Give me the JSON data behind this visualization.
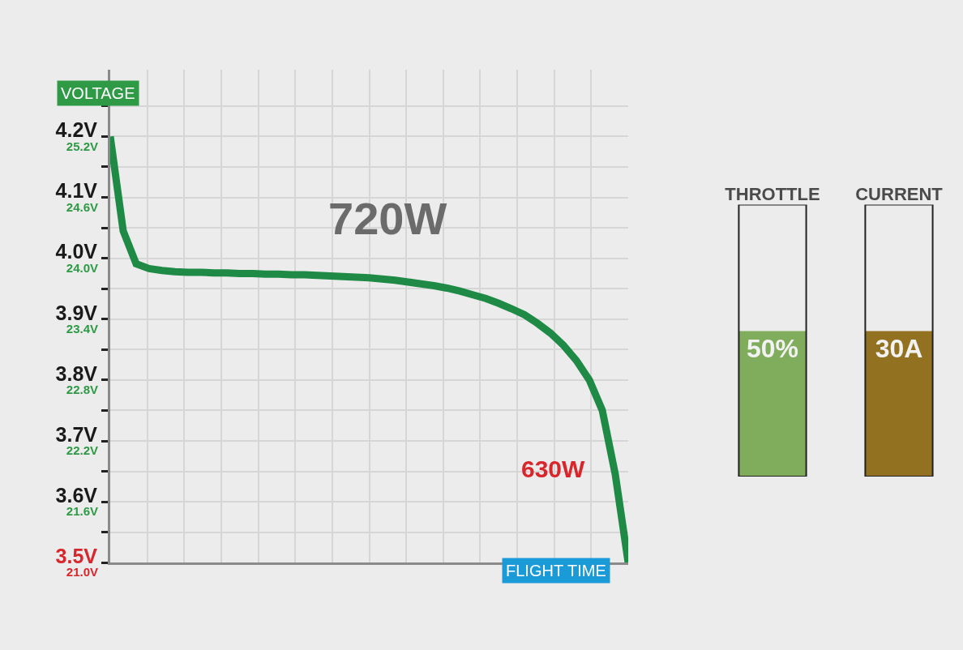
{
  "chart_data": [
    {
      "type": "line",
      "title": "720W",
      "xlabel": "FLIGHT TIME",
      "categories": [
        null,
        null,
        null,
        null,
        null,
        null,
        null,
        null,
        null,
        null,
        null,
        null,
        null,
        null,
        null,
        null,
        null,
        null,
        null,
        null,
        null,
        null,
        null,
        null,
        null,
        null,
        null,
        null,
        null,
        null,
        null,
        null,
        null,
        null,
        null,
        null,
        null,
        null,
        null,
        null,
        null
      ],
      "series": [
        {
          "color": "#1f8a46",
          "values": [
            4.2,
            4.045,
            3.991,
            3.983,
            3.98,
            3.978,
            3.977,
            3.977,
            3.976,
            3.976,
            3.975,
            3.975,
            3.974,
            3.974,
            3.973,
            3.973,
            3.972,
            3.971,
            3.97,
            3.969,
            3.968,
            3.966,
            3.964,
            3.961,
            3.958,
            3.955,
            3.951,
            3.946,
            3.94,
            3.934,
            3.926,
            3.917,
            3.907,
            3.893,
            3.877,
            3.857,
            3.832,
            3.8,
            3.75,
            3.645,
            3.5
          ]
        }
      ],
      "annotations": [
        "VOLTAGE",
        "630W"
      ],
      "ylim": [
        3.5,
        4.31
      ],
      "yticks": [
        {
          "value": 3.5,
          "label": "3.5V"
        },
        {
          "value": 3.55,
          "label": null
        },
        {
          "value": 3.6,
          "label": "3.6V"
        },
        {
          "value": 3.65,
          "label": null
        },
        {
          "value": 3.7,
          "label": "3.7V"
        },
        {
          "value": 3.75,
          "label": null
        },
        {
          "value": 3.8,
          "label": "3.8V"
        },
        {
          "value": 3.85,
          "label": null
        },
        {
          "value": 3.9,
          "label": "3.9V"
        },
        {
          "value": 3.95,
          "label": null
        },
        {
          "value": 4.0,
          "label": "4.0V"
        },
        {
          "value": 4.05,
          "label": null
        },
        {
          "value": 4.1,
          "label": "4.1V"
        },
        {
          "value": 4.15,
          "label": null
        },
        {
          "value": 4.2,
          "label": "4.2V"
        },
        {
          "value": 4.25,
          "label": null
        }
      ],
      "y2lim": [
        21.0,
        25.86
      ],
      "y2ticks": [
        {
          "value": 21.0,
          "label": "21.0V"
        },
        {
          "value": 21.6,
          "label": "21.6V"
        },
        {
          "value": 22.2,
          "label": "22.2V"
        },
        {
          "value": 22.8,
          "label": "22.8V"
        },
        {
          "value": 23.4,
          "label": "23.4V"
        },
        {
          "value": 24.0,
          "label": "24.0V"
        },
        {
          "value": 24.6,
          "label": "24.6V"
        },
        {
          "value": 25.2,
          "label": "25.2V"
        }
      ],
      "grid": true,
      "marker": "none",
      "line_style": "solid"
    },
    {
      "type": "bar",
      "categories": [
        "THROTTLE"
      ],
      "values": [
        50
      ],
      "colors": [
        "#80ad5c"
      ],
      "value_labels": [
        "50%"
      ],
      "ylim": [
        0,
        93.5
      ],
      "tick_labels": "x"
    },
    {
      "type": "bar",
      "categories": [
        "CURRENT"
      ],
      "values": [
        30
      ],
      "colors": [
        "#927121"
      ],
      "value_labels": [
        "30A"
      ],
      "ylim": [
        0,
        56.1
      ],
      "tick_labels": "x"
    }
  ]
}
